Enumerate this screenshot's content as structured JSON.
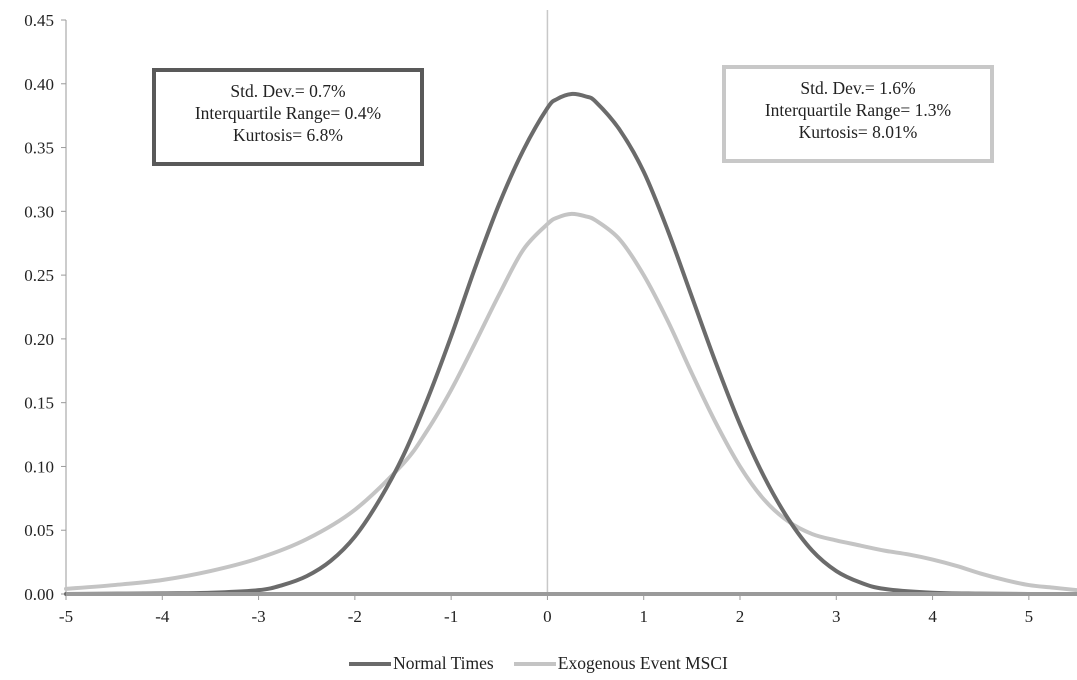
{
  "chart_data": {
    "type": "line",
    "title": "",
    "xlabel": "",
    "ylabel": "",
    "xlim": [
      -5,
      5.5
    ],
    "ylim": [
      0,
      0.45
    ],
    "x_ticks": [
      "-5",
      "-4",
      "-3",
      "-2",
      "-1",
      "0",
      "1",
      "2",
      "3",
      "4",
      "5"
    ],
    "y_ticks": [
      "0.00",
      "0.05",
      "0.10",
      "0.15",
      "0.20",
      "0.25",
      "0.30",
      "0.35",
      "0.40",
      "0.45"
    ],
    "grid": false,
    "vertical_reference_line_x": 0,
    "legend_position": "bottom",
    "series": [
      {
        "name": "Normal Times",
        "color": "#6b6b6b",
        "points": [
          [
            -5,
            0.0
          ],
          [
            -4,
            0.0005
          ],
          [
            -3.5,
            0.001
          ],
          [
            -3,
            0.003
          ],
          [
            -2.75,
            0.007
          ],
          [
            -2.5,
            0.014
          ],
          [
            -2.25,
            0.026
          ],
          [
            -2,
            0.045
          ],
          [
            -1.75,
            0.073
          ],
          [
            -1.5,
            0.108
          ],
          [
            -1.25,
            0.152
          ],
          [
            -1,
            0.202
          ],
          [
            -0.75,
            0.256
          ],
          [
            -0.5,
            0.306
          ],
          [
            -0.25,
            0.348
          ],
          [
            0,
            0.381
          ],
          [
            0.1,
            0.388
          ],
          [
            0.25,
            0.392
          ],
          [
            0.4,
            0.39
          ],
          [
            0.5,
            0.386
          ],
          [
            0.75,
            0.364
          ],
          [
            1,
            0.331
          ],
          [
            1.25,
            0.285
          ],
          [
            1.5,
            0.233
          ],
          [
            1.75,
            0.181
          ],
          [
            2,
            0.133
          ],
          [
            2.25,
            0.092
          ],
          [
            2.5,
            0.059
          ],
          [
            2.75,
            0.034
          ],
          [
            3,
            0.018
          ],
          [
            3.25,
            0.009
          ],
          [
            3.5,
            0.004
          ],
          [
            4,
            0.001
          ],
          [
            4.5,
            0.0003
          ],
          [
            5,
            0.0
          ],
          [
            5.5,
            0.0
          ]
        ]
      },
      {
        "name": "Exogenous Event MSCI",
        "color": "#c4c4c4",
        "points": [
          [
            -5,
            0.004
          ],
          [
            -4.5,
            0.007
          ],
          [
            -4,
            0.011
          ],
          [
            -3.5,
            0.018
          ],
          [
            -3,
            0.028
          ],
          [
            -2.5,
            0.043
          ],
          [
            -2,
            0.066
          ],
          [
            -1.5,
            0.102
          ],
          [
            -1.25,
            0.128
          ],
          [
            -1,
            0.16
          ],
          [
            -0.75,
            0.197
          ],
          [
            -0.5,
            0.235
          ],
          [
            -0.25,
            0.27
          ],
          [
            0,
            0.29
          ],
          [
            0.1,
            0.295
          ],
          [
            0.25,
            0.298
          ],
          [
            0.4,
            0.296
          ],
          [
            0.5,
            0.293
          ],
          [
            0.75,
            0.278
          ],
          [
            1,
            0.25
          ],
          [
            1.25,
            0.214
          ],
          [
            1.5,
            0.173
          ],
          [
            1.75,
            0.134
          ],
          [
            2,
            0.1
          ],
          [
            2.25,
            0.074
          ],
          [
            2.5,
            0.057
          ],
          [
            2.75,
            0.047
          ],
          [
            3,
            0.042
          ],
          [
            3.25,
            0.038
          ],
          [
            3.5,
            0.034
          ],
          [
            3.75,
            0.031
          ],
          [
            4,
            0.027
          ],
          [
            4.25,
            0.022
          ],
          [
            4.5,
            0.016
          ],
          [
            4.75,
            0.011
          ],
          [
            5,
            0.007
          ],
          [
            5.25,
            0.005
          ],
          [
            5.5,
            0.003
          ]
        ]
      }
    ],
    "annotations": {
      "normal": {
        "lines": [
          "Std. Dev.= 0.7%",
          "Interquartile Range= 0.4%",
          "Kurtosis= 6.8%"
        ],
        "border_color": "#595959"
      },
      "exogenous": {
        "lines": [
          "Std. Dev.= 1.6%",
          "Interquartile Range= 1.3%",
          "Kurtosis= 8.01%"
        ],
        "border_color": "#c8c8c8"
      }
    }
  }
}
